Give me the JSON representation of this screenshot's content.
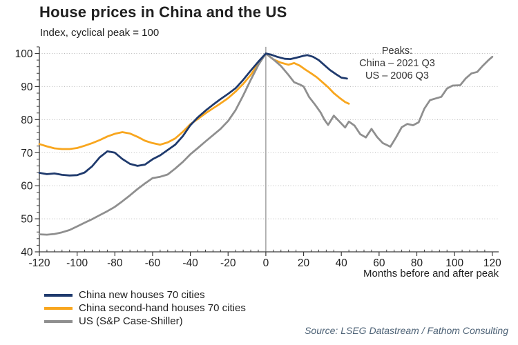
{
  "chart_data": {
    "type": "line",
    "title": "House prices in China and the US",
    "subtitle": "Index, cyclical peak = 100",
    "xlabel": "Months before and after peak",
    "ylabel": "Index, cyclical peak = 100",
    "xlim": [
      -120,
      124
    ],
    "ylim": [
      40,
      102
    ],
    "x_ticks": [
      -120,
      -100,
      -80,
      -60,
      -40,
      -20,
      0,
      20,
      40,
      60,
      80,
      100,
      120
    ],
    "y_ticks": [
      40,
      50,
      60,
      70,
      80,
      90,
      100
    ],
    "grid": "dotted horizontal gridlines at y ticks 50-100",
    "zero_line_x": 0,
    "legend_position": "bottom left",
    "annotation": {
      "position": "upper right",
      "lines": [
        "Peaks:",
        "China – 2021 Q3",
        "US – 2006 Q3"
      ]
    },
    "source": "Source: LSEG Datastream / Fathom Consulting",
    "colors": {
      "china_new": "#1f3a6d",
      "china_second_hand": "#f8a61e",
      "us": "#8f8f8f",
      "grid": "#b9b9b9",
      "axis": "#3a3a3a",
      "zero_line": "#8a8a8a"
    },
    "series": [
      {
        "name": "China new houses 70 cities",
        "color": "#1f3a6d",
        "points": [
          [
            -120,
            63.9
          ],
          [
            -116,
            63.5
          ],
          [
            -112,
            63.7
          ],
          [
            -108,
            63.3
          ],
          [
            -104,
            63.1
          ],
          [
            -100,
            63.2
          ],
          [
            -96,
            64.0
          ],
          [
            -92,
            65.9
          ],
          [
            -88,
            68.6
          ],
          [
            -84,
            70.4
          ],
          [
            -80,
            70.0
          ],
          [
            -76,
            68.1
          ],
          [
            -72,
            66.6
          ],
          [
            -68,
            66.0
          ],
          [
            -64,
            66.4
          ],
          [
            -60,
            68.0
          ],
          [
            -56,
            69.2
          ],
          [
            -52,
            70.8
          ],
          [
            -48,
            72.4
          ],
          [
            -44,
            75.0
          ],
          [
            -40,
            78.3
          ],
          [
            -36,
            80.7
          ],
          [
            -32,
            82.7
          ],
          [
            -28,
            84.5
          ],
          [
            -24,
            86.2
          ],
          [
            -20,
            87.8
          ],
          [
            -16,
            89.5
          ],
          [
            -12,
            92.0
          ],
          [
            -8,
            94.8
          ],
          [
            -4,
            97.5
          ],
          [
            0,
            100
          ],
          [
            3,
            99.6
          ],
          [
            6,
            99.0
          ],
          [
            10,
            98.4
          ],
          [
            13,
            98.3
          ],
          [
            16,
            98.7
          ],
          [
            20,
            99.3
          ],
          [
            22,
            99.5
          ],
          [
            25,
            99.0
          ],
          [
            28,
            98.0
          ],
          [
            31,
            96.5
          ],
          [
            34,
            95.0
          ],
          [
            37,
            93.8
          ],
          [
            40,
            92.7
          ],
          [
            43,
            92.4
          ]
        ]
      },
      {
        "name": "China second-hand houses 70 cities",
        "color": "#f8a61e",
        "points": [
          [
            -120,
            72.6
          ],
          [
            -116,
            71.9
          ],
          [
            -112,
            71.3
          ],
          [
            -108,
            71.1
          ],
          [
            -104,
            71.1
          ],
          [
            -100,
            71.4
          ],
          [
            -96,
            72.1
          ],
          [
            -92,
            72.9
          ],
          [
            -88,
            73.8
          ],
          [
            -84,
            74.9
          ],
          [
            -80,
            75.7
          ],
          [
            -76,
            76.2
          ],
          [
            -72,
            75.8
          ],
          [
            -68,
            74.8
          ],
          [
            -64,
            73.6
          ],
          [
            -60,
            72.9
          ],
          [
            -56,
            72.4
          ],
          [
            -52,
            73.1
          ],
          [
            -48,
            74.3
          ],
          [
            -44,
            76.3
          ],
          [
            -40,
            78.6
          ],
          [
            -36,
            80.2
          ],
          [
            -32,
            81.9
          ],
          [
            -28,
            83.4
          ],
          [
            -24,
            84.9
          ],
          [
            -20,
            86.5
          ],
          [
            -16,
            88.5
          ],
          [
            -12,
            90.8
          ],
          [
            -8,
            93.5
          ],
          [
            -4,
            96.8
          ],
          [
            0,
            100
          ],
          [
            4,
            98.2
          ],
          [
            8,
            97.2
          ],
          [
            12,
            96.6
          ],
          [
            15,
            97.1
          ],
          [
            18,
            96.3
          ],
          [
            21,
            95.1
          ],
          [
            24,
            94.0
          ],
          [
            27,
            92.8
          ],
          [
            30,
            91.3
          ],
          [
            33,
            89.8
          ],
          [
            36,
            88.0
          ],
          [
            39,
            86.6
          ],
          [
            42,
            85.3
          ],
          [
            44,
            84.8
          ]
        ]
      },
      {
        "name": "US (S&P Case-Shiller)",
        "color": "#8f8f8f",
        "points": [
          [
            -120,
            45.3
          ],
          [
            -116,
            45.2
          ],
          [
            -112,
            45.4
          ],
          [
            -108,
            45.9
          ],
          [
            -104,
            46.6
          ],
          [
            -100,
            47.7
          ],
          [
            -96,
            48.8
          ],
          [
            -92,
            49.9
          ],
          [
            -88,
            51.1
          ],
          [
            -84,
            52.3
          ],
          [
            -80,
            53.6
          ],
          [
            -76,
            55.3
          ],
          [
            -72,
            57.1
          ],
          [
            -68,
            59.0
          ],
          [
            -64,
            60.7
          ],
          [
            -60,
            62.3
          ],
          [
            -56,
            62.7
          ],
          [
            -52,
            63.4
          ],
          [
            -48,
            65.2
          ],
          [
            -44,
            67.2
          ],
          [
            -40,
            69.5
          ],
          [
            -36,
            71.4
          ],
          [
            -32,
            73.4
          ],
          [
            -28,
            75.3
          ],
          [
            -24,
            77.2
          ],
          [
            -20,
            79.6
          ],
          [
            -16,
            82.9
          ],
          [
            -12,
            87.3
          ],
          [
            -8,
            92.0
          ],
          [
            -4,
            96.5
          ],
          [
            0,
            100
          ],
          [
            4,
            98.2
          ],
          [
            8,
            96.2
          ],
          [
            12,
            93.5
          ],
          [
            15,
            91.3
          ],
          [
            18,
            90.6
          ],
          [
            20,
            90.0
          ],
          [
            23,
            86.8
          ],
          [
            26,
            84.6
          ],
          [
            29,
            82.2
          ],
          [
            31,
            80.0
          ],
          [
            33,
            78.4
          ],
          [
            36,
            81.2
          ],
          [
            39,
            79.4
          ],
          [
            42,
            77.6
          ],
          [
            44,
            79.4
          ],
          [
            47,
            78.2
          ],
          [
            50,
            75.6
          ],
          [
            53,
            74.6
          ],
          [
            56,
            77.2
          ],
          [
            59,
            74.7
          ],
          [
            62,
            72.9
          ],
          [
            66,
            71.8
          ],
          [
            69,
            74.6
          ],
          [
            72,
            77.7
          ],
          [
            75,
            78.7
          ],
          [
            78,
            78.3
          ],
          [
            81,
            79.2
          ],
          [
            84,
            83.3
          ],
          [
            87,
            85.9
          ],
          [
            90,
            86.4
          ],
          [
            93,
            86.9
          ],
          [
            96,
            89.4
          ],
          [
            99,
            90.3
          ],
          [
            103,
            90.4
          ],
          [
            106,
            92.5
          ],
          [
            109,
            94.0
          ],
          [
            112,
            94.4
          ],
          [
            115,
            96.3
          ],
          [
            118,
            98.0
          ],
          [
            120,
            99.0
          ]
        ]
      }
    ]
  }
}
